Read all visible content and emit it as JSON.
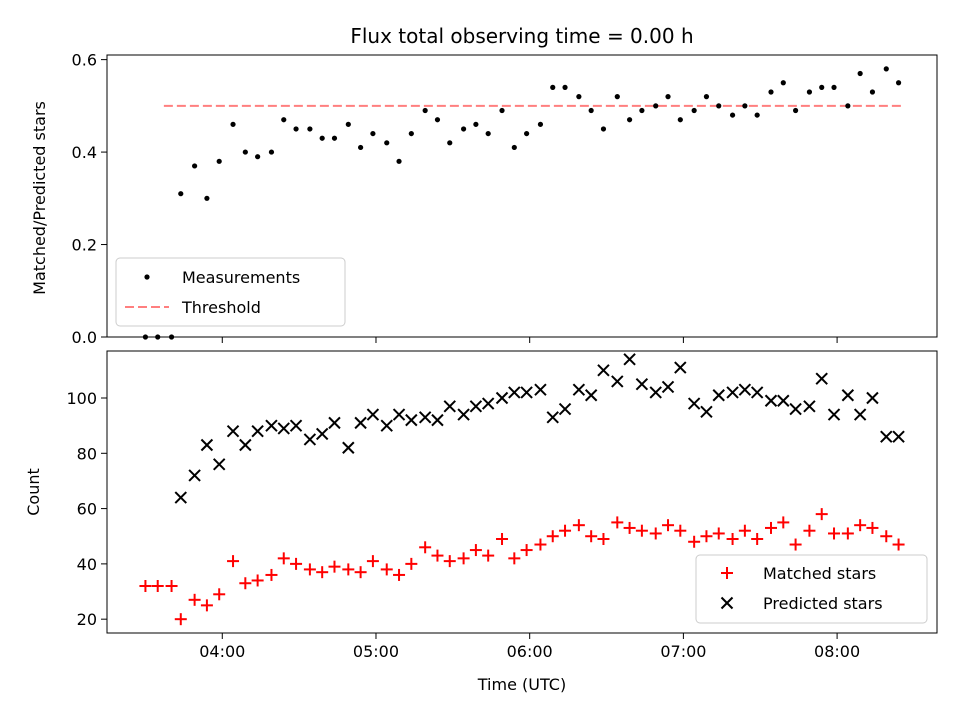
{
  "chart_data": [
    {
      "type": "scatter",
      "title": "Flux total observing time = 0.00 h",
      "xlabel": "",
      "ylabel": "Matched/Predicted stars",
      "ylim": [
        0,
        0.61
      ],
      "yticks": [
        "0.0",
        "0.2",
        "0.4",
        "0.6"
      ],
      "ytick_values": [
        0,
        0.2,
        0.4,
        0.6
      ],
      "legend_position": "lower-left",
      "threshold": {
        "name": "Threshold",
        "value": 0.5,
        "color": "#ff7f7f",
        "style": "dashed",
        "x_range": [
          3.62,
          8.42
        ]
      },
      "series": [
        {
          "name": "Measurements",
          "color": "#000000",
          "marker": "dot",
          "x": [
            3.5,
            3.58,
            3.67,
            3.73,
            3.82,
            3.9,
            3.98,
            4.07,
            4.15,
            4.23,
            4.32,
            4.4,
            4.48,
            4.57,
            4.65,
            4.73,
            4.82,
            4.9,
            4.98,
            5.07,
            5.15,
            5.23,
            5.32,
            5.4,
            5.48,
            5.57,
            5.65,
            5.73,
            5.82,
            5.9,
            5.98,
            6.07,
            6.15,
            6.23,
            6.32,
            6.4,
            6.48,
            6.57,
            6.65,
            6.73,
            6.82,
            6.9,
            6.98,
            7.07,
            7.15,
            7.23,
            7.32,
            7.4,
            7.48,
            7.57,
            7.65,
            7.73,
            7.82,
            7.9,
            7.98,
            8.07,
            8.15,
            8.23,
            8.32,
            8.4
          ],
          "y": [
            0.0,
            0.0,
            0.0,
            0.31,
            0.37,
            0.3,
            0.38,
            0.46,
            0.4,
            0.39,
            0.4,
            0.47,
            0.45,
            0.45,
            0.43,
            0.43,
            0.46,
            0.41,
            0.44,
            0.42,
            0.38,
            0.44,
            0.49,
            0.47,
            0.42,
            0.45,
            0.46,
            0.44,
            0.49,
            0.41,
            0.44,
            0.46,
            0.54,
            0.54,
            0.52,
            0.49,
            0.45,
            0.52,
            0.47,
            0.49,
            0.5,
            0.52,
            0.47,
            0.49,
            0.52,
            0.5,
            0.48,
            0.5,
            0.48,
            0.53,
            0.55,
            0.49,
            0.53,
            0.54,
            0.54,
            0.5,
            0.57,
            0.53,
            0.58,
            0.55
          ]
        }
      ]
    },
    {
      "type": "scatter",
      "title": "",
      "xlabel": "Time (UTC)",
      "ylabel": "Count",
      "xlim": [
        3.25,
        8.65
      ],
      "ylim": [
        15,
        117
      ],
      "xticks": [
        "04:00",
        "05:00",
        "06:00",
        "07:00",
        "08:00"
      ],
      "xtick_values": [
        4,
        5,
        6,
        7,
        8
      ],
      "yticks": [
        "20",
        "40",
        "60",
        "80",
        "100"
      ],
      "ytick_values": [
        20,
        40,
        60,
        80,
        100
      ],
      "legend_position": "lower-right",
      "series": [
        {
          "name": "Matched stars",
          "color": "#ff0000",
          "marker": "plus",
          "x": [
            3.5,
            3.58,
            3.67,
            3.73,
            3.82,
            3.9,
            3.98,
            4.07,
            4.15,
            4.23,
            4.32,
            4.4,
            4.48,
            4.57,
            4.65,
            4.73,
            4.82,
            4.9,
            4.98,
            5.07,
            5.15,
            5.23,
            5.32,
            5.4,
            5.48,
            5.57,
            5.65,
            5.73,
            5.82,
            5.9,
            5.98,
            6.07,
            6.15,
            6.23,
            6.32,
            6.4,
            6.48,
            6.57,
            6.65,
            6.73,
            6.82,
            6.9,
            6.98,
            7.07,
            7.15,
            7.23,
            7.32,
            7.4,
            7.48,
            7.57,
            7.65,
            7.73,
            7.82,
            7.9,
            7.98,
            8.07,
            8.15,
            8.23,
            8.32,
            8.4
          ],
          "y": [
            32,
            32,
            32,
            20,
            27,
            25,
            29,
            41,
            33,
            34,
            36,
            42,
            40,
            38,
            37,
            39,
            38,
            37,
            41,
            38,
            36,
            40,
            46,
            43,
            41,
            42,
            45,
            43,
            49,
            42,
            45,
            47,
            50,
            52,
            54,
            50,
            49,
            55,
            53,
            52,
            51,
            54,
            52,
            48,
            50,
            51,
            49,
            52,
            49,
            53,
            55,
            47,
            52,
            58,
            51,
            51,
            54,
            53,
            50,
            47
          ]
        },
        {
          "name": "Predicted stars",
          "color": "#000000",
          "marker": "x",
          "x": [
            3.73,
            3.82,
            3.9,
            3.98,
            4.07,
            4.15,
            4.23,
            4.32,
            4.4,
            4.48,
            4.57,
            4.65,
            4.73,
            4.82,
            4.9,
            4.98,
            5.07,
            5.15,
            5.23,
            5.32,
            5.4,
            5.48,
            5.57,
            5.65,
            5.73,
            5.82,
            5.9,
            5.98,
            6.07,
            6.15,
            6.23,
            6.32,
            6.4,
            6.48,
            6.57,
            6.65,
            6.73,
            6.82,
            6.9,
            6.98,
            7.07,
            7.15,
            7.23,
            7.32,
            7.4,
            7.48,
            7.57,
            7.65,
            7.73,
            7.82,
            7.9,
            7.98,
            8.07,
            8.15,
            8.23,
            8.32,
            8.4
          ],
          "y": [
            64,
            72,
            83,
            76,
            88,
            83,
            88,
            90,
            89,
            90,
            85,
            87,
            91,
            82,
            91,
            94,
            90,
            94,
            92,
            93,
            92,
            97,
            94,
            97,
            98,
            100,
            102,
            102,
            103,
            93,
            96,
            103,
            101,
            110,
            106,
            114,
            105,
            102,
            104,
            111,
            98,
            95,
            101,
            102,
            103,
            102,
            99,
            99,
            96,
            97,
            107,
            94,
            101,
            94,
            100,
            86,
            86
          ]
        }
      ]
    }
  ]
}
